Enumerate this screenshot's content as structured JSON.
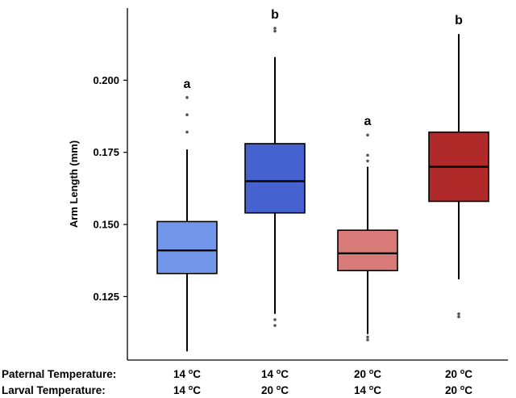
{
  "chart_data": {
    "type": "box",
    "ylabel": "Arm Length (mm)",
    "ylim": [
      0.103,
      0.225
    ],
    "yticks": [
      0.125,
      0.15,
      0.175,
      0.2
    ],
    "ytick_labels": [
      "0.125",
      "0.150",
      "0.175",
      "0.200"
    ],
    "grid": false,
    "row_labels": [
      "Paternal Temperature:",
      "Larval Temperature:"
    ],
    "groups": [
      {
        "paternal": "14 °C",
        "larval": "14 °C",
        "color": "#7496ea",
        "min": 0.106,
        "q1": 0.133,
        "median": 0.141,
        "q3": 0.151,
        "max": 0.176,
        "outliers": [
          0.182,
          0.188,
          0.194
        ],
        "letter": "a"
      },
      {
        "paternal": "14 °C",
        "larval": "20 °C",
        "color": "#4661d0",
        "min": 0.119,
        "q1": 0.154,
        "median": 0.165,
        "q3": 0.178,
        "max": 0.208,
        "outliers": [
          0.115,
          0.117,
          0.217,
          0.218
        ],
        "letter": "b"
      },
      {
        "paternal": "20 °C",
        "larval": "14 °C",
        "color": "#d87b78",
        "min": 0.112,
        "q1": 0.134,
        "median": 0.14,
        "q3": 0.148,
        "max": 0.17,
        "outliers": [
          0.11,
          0.111,
          0.172,
          0.174,
          0.181
        ],
        "letter": "a"
      },
      {
        "paternal": "20 °C",
        "larval": "20 °C",
        "color": "#b12a2a",
        "min": 0.131,
        "q1": 0.158,
        "median": 0.17,
        "q3": 0.182,
        "max": 0.216,
        "outliers": [
          0.118,
          0.119
        ],
        "letter": "b"
      }
    ]
  }
}
